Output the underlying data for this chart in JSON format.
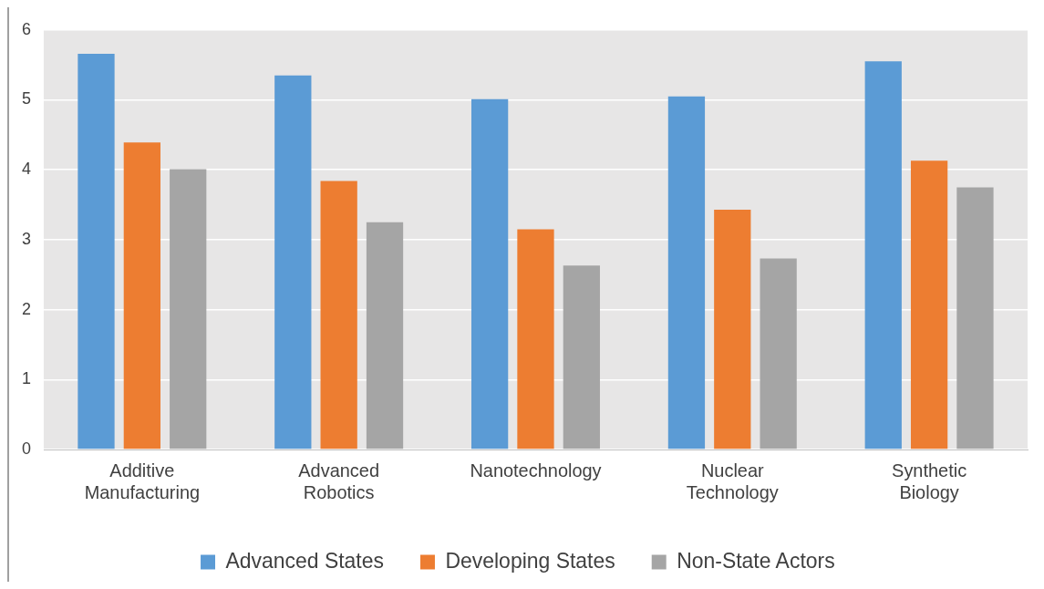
{
  "chart_data": {
    "type": "bar",
    "categories": [
      "Additive Manufacturing",
      "Advanced Robotics",
      "Nanotechnology",
      "Nuclear Technology",
      "Synthetic Biology"
    ],
    "series": [
      {
        "name": "Advanced States",
        "color": "#5b9bd5",
        "values": [
          5.66,
          5.35,
          5.01,
          5.05,
          5.55
        ]
      },
      {
        "name": "Developing States",
        "color": "#ed7d31",
        "values": [
          4.39,
          3.84,
          3.15,
          3.43,
          4.13
        ]
      },
      {
        "name": "Non-State Actors",
        "color": "#a5a5a5",
        "values": [
          4.01,
          3.25,
          2.63,
          2.73,
          3.75
        ]
      }
    ],
    "ylim": [
      0,
      6
    ],
    "yticks": [
      0,
      1,
      2,
      3,
      4,
      5,
      6
    ],
    "grid": "y",
    "legend": "bottom"
  }
}
